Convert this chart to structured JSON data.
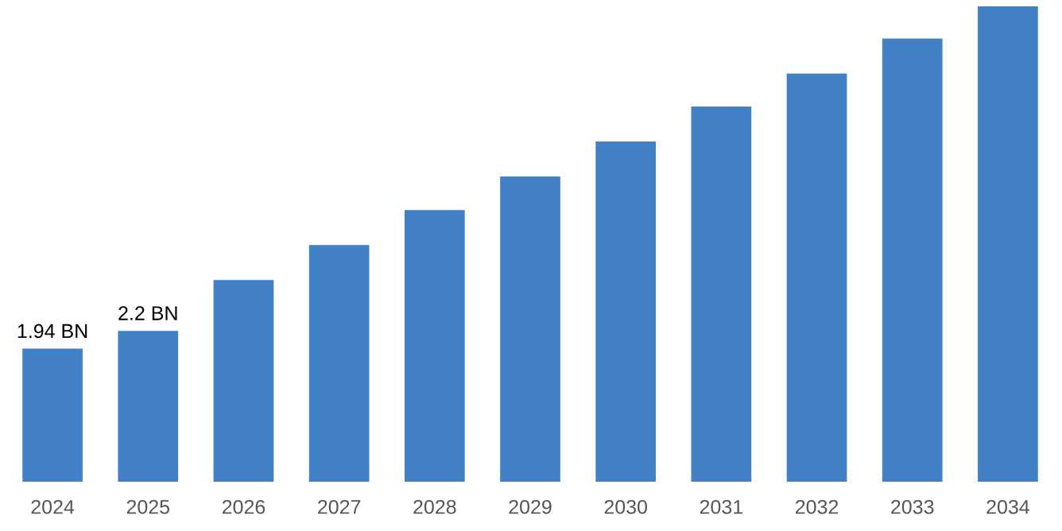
{
  "chart_data": {
    "type": "bar",
    "categories": [
      "2024",
      "2025",
      "2026",
      "2027",
      "2028",
      "2029",
      "2030",
      "2031",
      "2032",
      "2033",
      "2034"
    ],
    "values": [
      1.94,
      2.2,
      2.94,
      3.45,
      3.96,
      4.45,
      4.96,
      5.47,
      5.95,
      6.46,
      6.93
    ],
    "value_labels": [
      "1.94 BN",
      "2.2 BN",
      null,
      null,
      null,
      null,
      null,
      null,
      null,
      null,
      null
    ],
    "color": "#4281c6",
    "grid": false,
    "legend": false
  }
}
